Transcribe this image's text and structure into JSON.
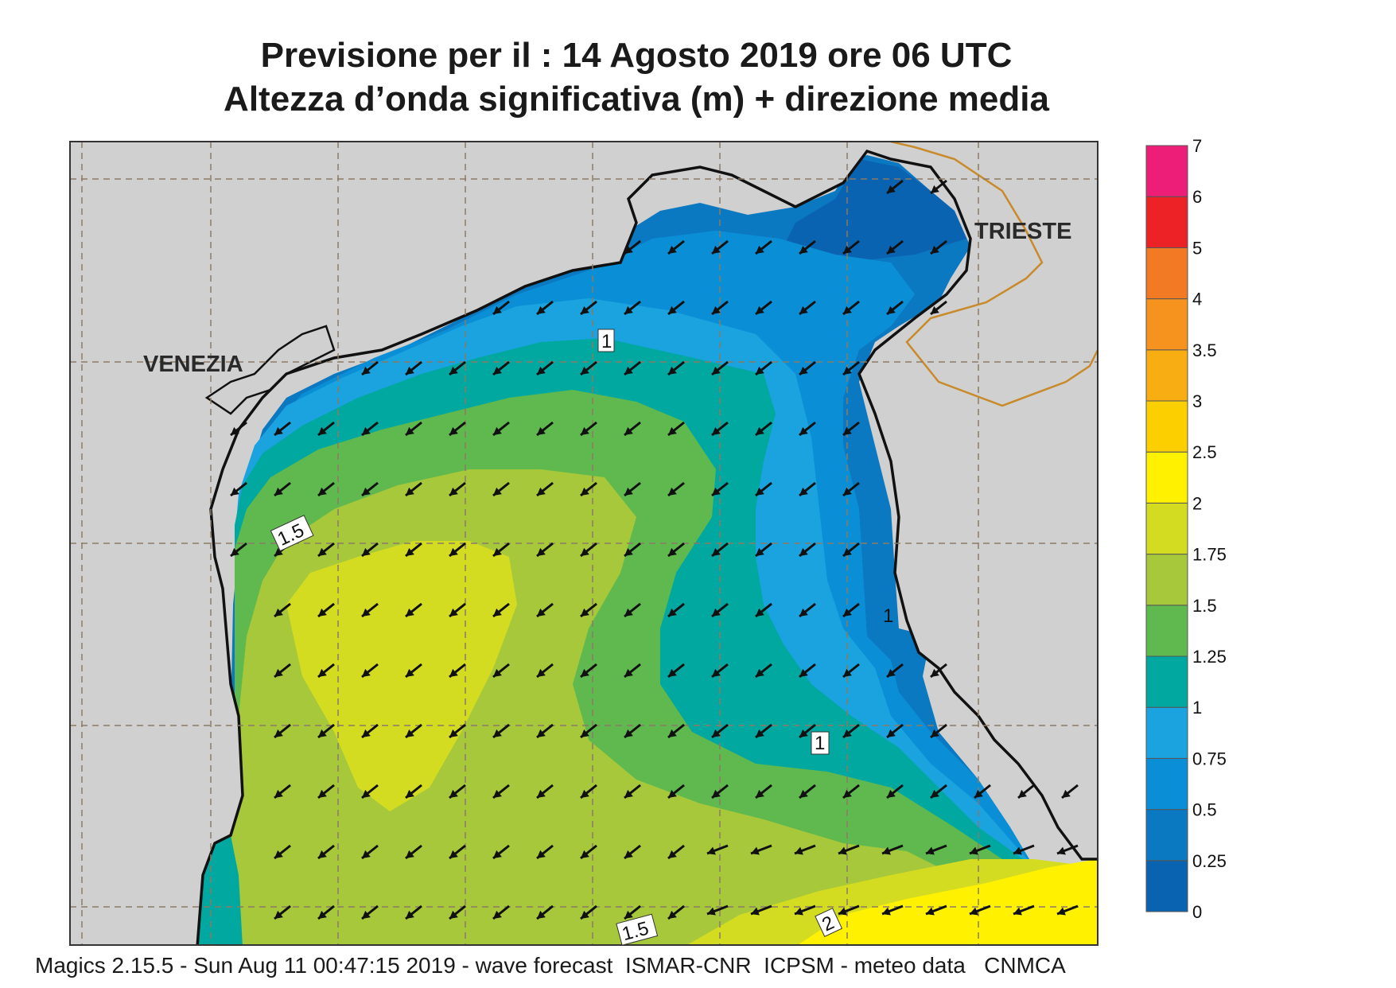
{
  "title_line1": "Previsione per il  :  14   Agosto  2019   ore 06 UTC",
  "title_line2": "Altezza d’onda significativa (m) + direzione media",
  "footer": "Magics 2.15.5 - Sun Aug 11 00:47:15 2019 - wave forecast  ISMAR-CNR  ICPSM - meteo data   CNMCA",
  "places": {
    "venezia": "VENEZIA",
    "trieste": "TRIESTE"
  },
  "contour_labels": [
    "1",
    "1.5",
    "1",
    "1",
    "1.5",
    "2"
  ],
  "legend": {
    "ticks": [
      "0",
      "0.25",
      "0.5",
      "0.75",
      "1",
      "1.25",
      "1.5",
      "1.75",
      "2",
      "2.5",
      "3",
      "3.5",
      "4",
      "5",
      "6",
      "7"
    ],
    "colors": [
      "#0a63b0",
      "#0b78c2",
      "#0a8fd6",
      "#1ba3e0",
      "#00a8a0",
      "#5fb94f",
      "#a6c83a",
      "#d4dc22",
      "#fff100",
      "#fccf00",
      "#f8ae12",
      "#f6921e",
      "#f37a24",
      "#ec2227",
      "#ec1e78"
    ]
  },
  "wave_direction": "south-west",
  "colors": {
    "land": "#d0d0d0",
    "coast": "#111111",
    "border": "#c88a2a",
    "arrow": "#111111"
  }
}
